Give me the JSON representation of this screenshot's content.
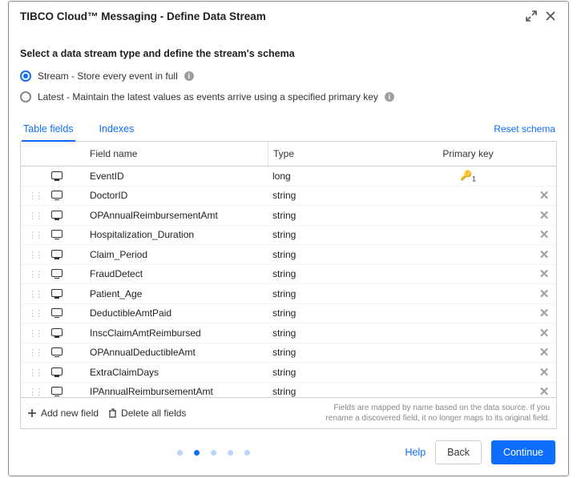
{
  "header": {
    "title": "TIBCO Cloud™ Messaging  -   Define Data Stream"
  },
  "instruction": "Select a data stream type and define the stream's schema",
  "radios": {
    "stream": {
      "label": "Stream - Store every event in full",
      "selected": true
    },
    "latest": {
      "label": "Latest - Maintain the latest values as events arrive using a specified primary key",
      "selected": false
    }
  },
  "tabs": {
    "fields": "Table fields",
    "indexes": "Indexes",
    "reset": "Reset schema"
  },
  "columns": {
    "fieldname": "Field name",
    "type": "Type",
    "primarykey": "Primary key"
  },
  "rows": [
    {
      "name": "EventID",
      "type": "long",
      "pk": 1,
      "deletable": false,
      "draggable": false
    },
    {
      "name": "DoctorID",
      "type": "string",
      "pk": null,
      "deletable": true,
      "draggable": true
    },
    {
      "name": "OPAnnualReimbursementAmt",
      "type": "string",
      "pk": null,
      "deletable": true,
      "draggable": true
    },
    {
      "name": "Hospitalization_Duration",
      "type": "string",
      "pk": null,
      "deletable": true,
      "draggable": true
    },
    {
      "name": "Claim_Period",
      "type": "string",
      "pk": null,
      "deletable": true,
      "draggable": true
    },
    {
      "name": "FraudDetect",
      "type": "string",
      "pk": null,
      "deletable": true,
      "draggable": true
    },
    {
      "name": "Patient_Age",
      "type": "string",
      "pk": null,
      "deletable": true,
      "draggable": true
    },
    {
      "name": "DeductibleAmtPaid",
      "type": "string",
      "pk": null,
      "deletable": true,
      "draggable": true
    },
    {
      "name": "InscClaimAmtReimbursed",
      "type": "string",
      "pk": null,
      "deletable": true,
      "draggable": true
    },
    {
      "name": "OPAnnualDeductibleAmt",
      "type": "string",
      "pk": null,
      "deletable": true,
      "draggable": true
    },
    {
      "name": "ExtraClaimDays",
      "type": "string",
      "pk": null,
      "deletable": true,
      "draggable": true
    },
    {
      "name": "IPAnnualReimbursementAmt",
      "type": "string",
      "pk": null,
      "deletable": true,
      "draggable": true
    }
  ],
  "tfoot": {
    "add": "Add new field",
    "delete": "Delete all fields",
    "note": "Fields are mapped by name based on the data source. If you rename a discovered field, it no longer maps to its original field."
  },
  "footer": {
    "help": "Help",
    "back": "Back",
    "continue": "Continue",
    "steps": {
      "total": 5,
      "active": 1
    }
  },
  "colors": {
    "primary": "#0d6efd",
    "border": "#d0d0d0",
    "muted": "#888"
  }
}
